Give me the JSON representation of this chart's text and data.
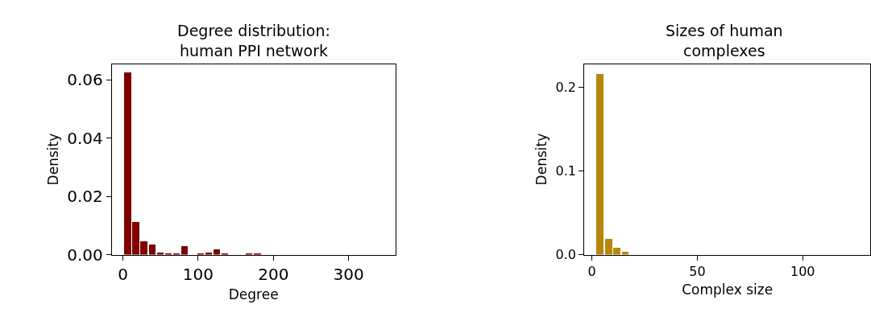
{
  "chart_data": [
    {
      "type": "histogram",
      "title": "Degree distribution:\nhuman PPI network",
      "xlabel": "Degree",
      "ylabel": "Density",
      "color": "#800000",
      "bins": [
        1,
        11.75,
        22.5,
        33.25,
        44,
        54.75,
        65.5,
        76.25,
        87,
        97.75,
        108.5,
        119.25,
        130,
        140.75,
        151.5,
        162.25,
        173,
        183.75,
        194.5,
        205.25,
        216,
        226.75,
        237.5,
        248.25,
        259,
        269.75,
        280.5,
        291.25,
        302,
        312.75,
        323.5,
        334.25,
        345
      ],
      "values": [
        0.0626,
        0.0113,
        0.0048,
        0.0036,
        0.0009,
        0.0005,
        0.0004,
        0.0029,
        0,
        0.0005,
        0.0007,
        0.0018,
        0.0004,
        0,
        0,
        0.0004,
        0.0004,
        0,
        0,
        0,
        0,
        0,
        0,
        0,
        0,
        0,
        0,
        0,
        0,
        0,
        0,
        0
      ],
      "xlim": [
        -14.7,
        362
      ],
      "xticks": [
        0,
        100,
        200,
        300
      ],
      "ylim": [
        0,
        0.0654
      ],
      "yticks": [
        {
          "value": 0,
          "label": "0.00"
        },
        {
          "value": 0.02,
          "label": "0.02"
        },
        {
          "value": 0.04,
          "label": "0.04"
        },
        {
          "value": 0.06,
          "label": "0.06"
        }
      ]
    },
    {
      "type": "histogram",
      "title": "Sizes of human\ncomplexes",
      "xlabel": "Complex size",
      "ylabel": "Density",
      "color": "#b8860b",
      "bins": [
        2,
        6,
        10,
        14,
        18,
        22,
        26,
        30,
        34,
        38,
        42,
        46,
        50,
        54,
        58,
        62,
        66,
        70,
        74,
        78,
        82,
        86,
        90,
        94,
        98,
        102,
        106,
        110,
        114,
        118,
        122,
        126,
        130
      ],
      "values": [
        0.216,
        0.019,
        0.009,
        0.004,
        0,
        0,
        0,
        0,
        0,
        0,
        0,
        0,
        0,
        0,
        0,
        0,
        0,
        0,
        0,
        0,
        0,
        0,
        0,
        0,
        0,
        0,
        0,
        0,
        0,
        0,
        0,
        0
      ],
      "xlim": [
        -3.5,
        132
      ],
      "xticks": [
        0,
        50,
        100
      ],
      "ylim": [
        0,
        0.228
      ],
      "yticks": [
        {
          "value": 0,
          "label": "0.0"
        },
        0.1,
        0.2
      ]
    }
  ]
}
